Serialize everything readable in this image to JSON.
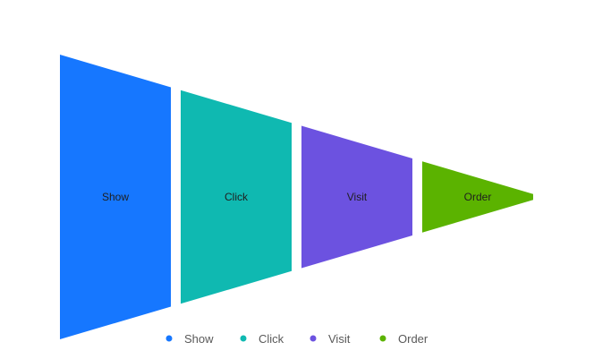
{
  "chart_data": {
    "type": "funnel",
    "orientation": "horizontal",
    "categories": [
      "Show",
      "Click",
      "Visit",
      "Order"
    ],
    "values": [
      100,
      75,
      50,
      25
    ],
    "colors": [
      "#1677ff",
      "#0fb9b1",
      "#6c52e0",
      "#5bb300"
    ],
    "legend": {
      "position": "bottom",
      "items": [
        "Show",
        "Click",
        "Visit",
        "Order"
      ]
    },
    "title": "",
    "xlabel": "",
    "ylabel": ""
  }
}
